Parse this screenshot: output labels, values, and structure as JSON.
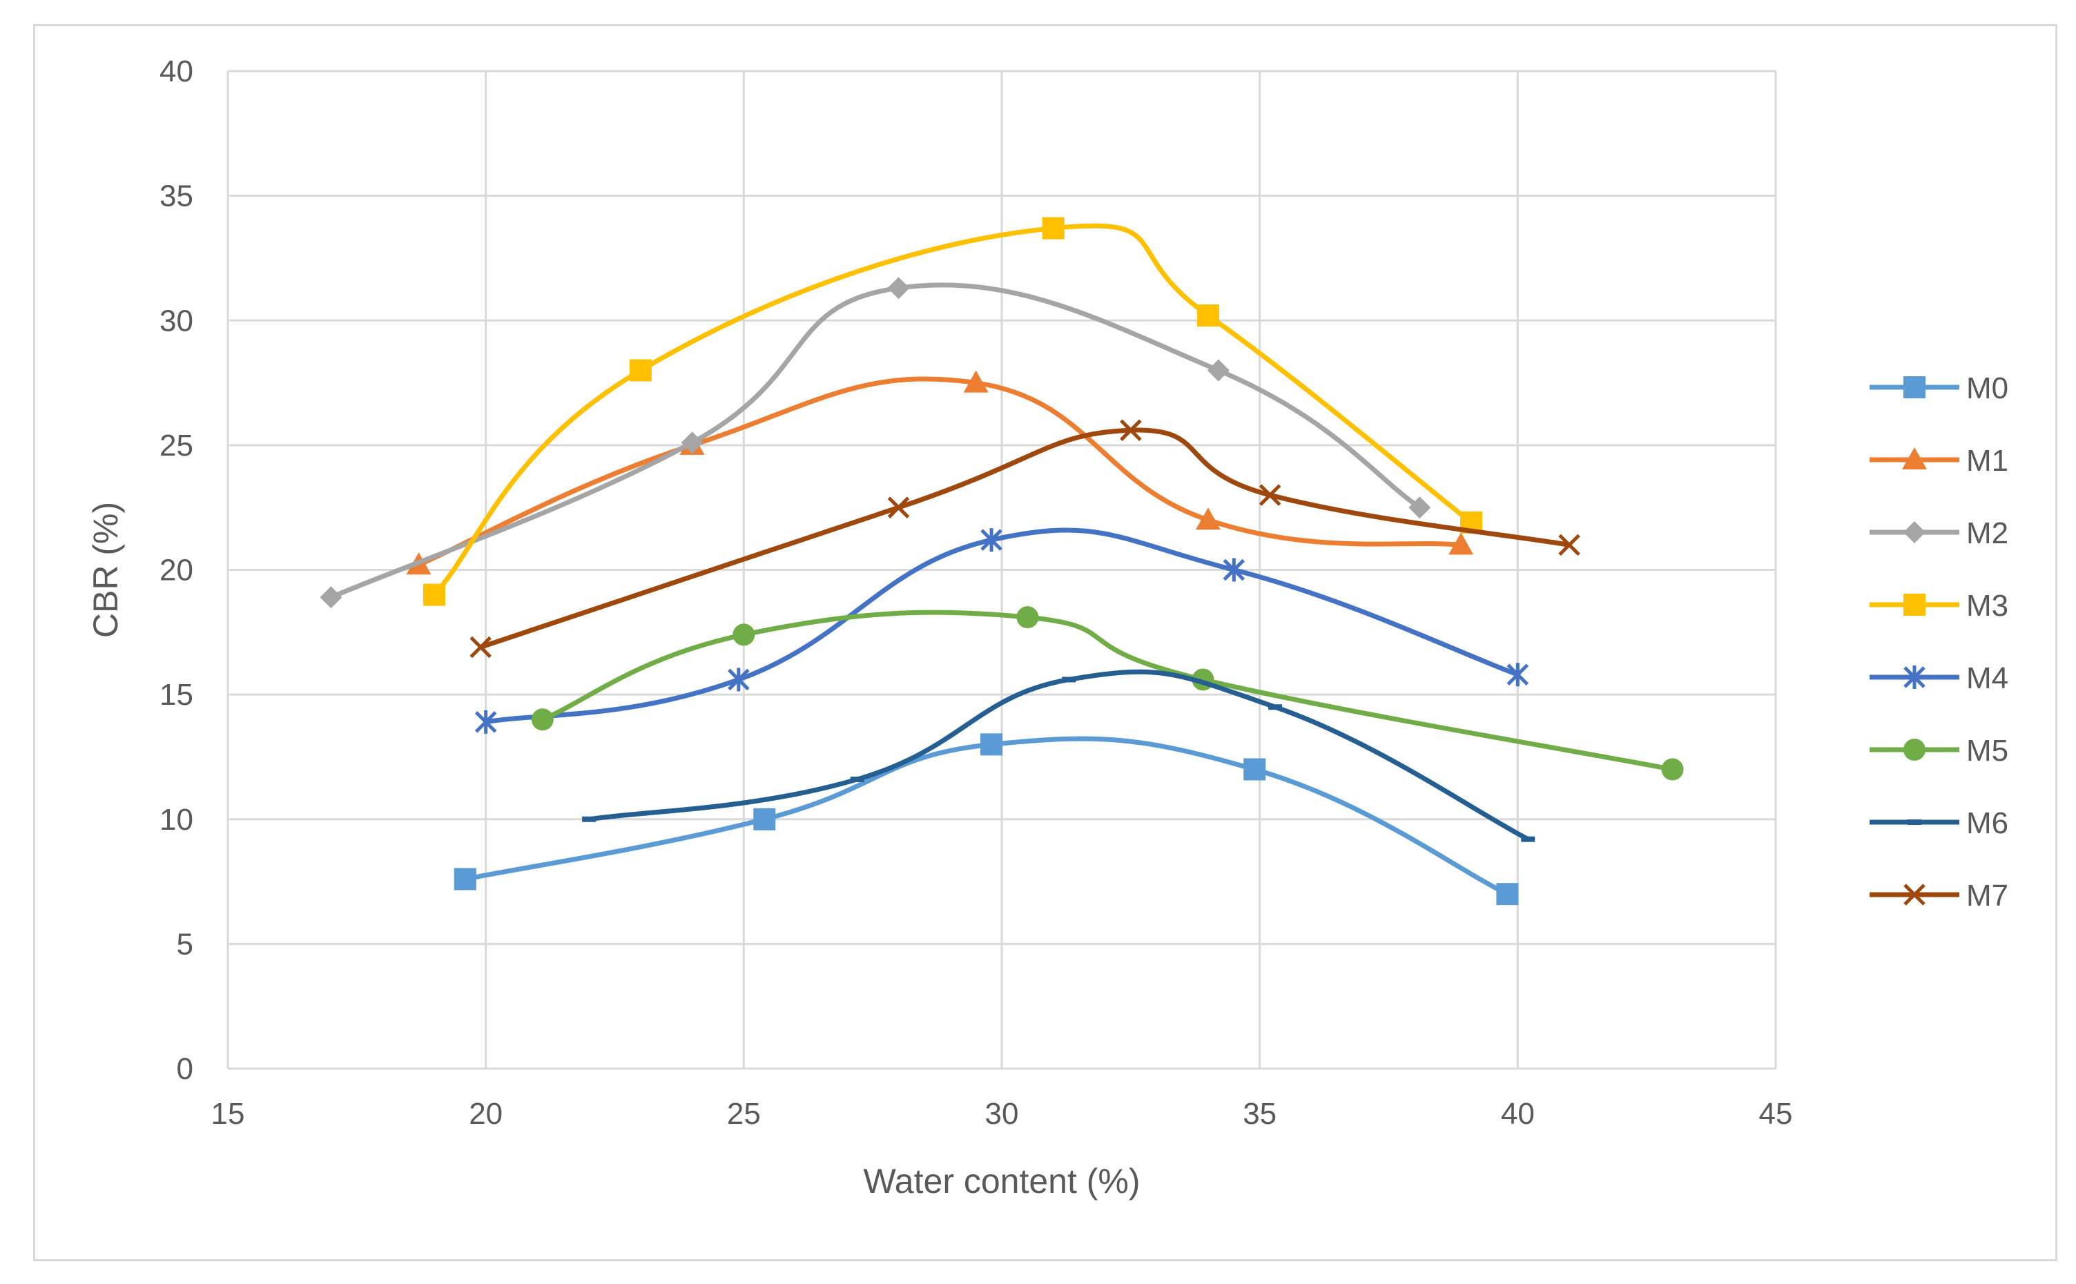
{
  "chart_data": {
    "type": "line",
    "title": "",
    "xlabel": "Water content (%)",
    "ylabel": "CBR (%)",
    "xlim": [
      15,
      45
    ],
    "ylim": [
      0,
      40
    ],
    "xticks": [
      15,
      20,
      25,
      30,
      35,
      40,
      45
    ],
    "yticks": [
      0,
      5,
      10,
      15,
      20,
      25,
      30,
      35,
      40
    ],
    "xtick_labels": [
      "15",
      "20",
      "25",
      "30",
      "35",
      "40",
      "45"
    ],
    "ytick_labels": [
      "0",
      "5",
      "10",
      "15",
      "20",
      "25",
      "30",
      "35",
      "40"
    ],
    "grid": true,
    "legend_position": "right",
    "smooth": true,
    "series": [
      {
        "name": "M0",
        "color": "#5b9bd5",
        "marker": "square",
        "x": [
          19.6,
          25.4,
          29.8,
          34.9,
          39.8
        ],
        "y": [
          7.6,
          10,
          13,
          12,
          7
        ]
      },
      {
        "name": "M1",
        "color": "#ed7d31",
        "marker": "triangle",
        "x": [
          18.7,
          24.0,
          29.5,
          34.0,
          38.9
        ],
        "y": [
          20.2,
          25,
          27.5,
          22,
          21
        ]
      },
      {
        "name": "M2",
        "color": "#a5a5a5",
        "marker": "diamond",
        "x": [
          17.0,
          24.0,
          28.0,
          34.2,
          38.1
        ],
        "y": [
          18.9,
          25.1,
          31.3,
          28,
          22.5
        ]
      },
      {
        "name": "M3",
        "color": "#ffc000",
        "marker": "square",
        "x": [
          19.0,
          23.0,
          31.0,
          34.0,
          39.1
        ],
        "y": [
          19,
          28,
          33.7,
          30.2,
          21.9
        ]
      },
      {
        "name": "M4",
        "color": "#4472c4",
        "marker": "star",
        "x": [
          20.0,
          24.9,
          29.8,
          34.5,
          40.0
        ],
        "y": [
          13.9,
          15.6,
          21.2,
          20,
          15.8
        ]
      },
      {
        "name": "M5",
        "color": "#70ad47",
        "marker": "circle",
        "x": [
          21.1,
          25.0,
          30.5,
          33.9,
          43.0
        ],
        "y": [
          14,
          17.4,
          18.1,
          15.6,
          12
        ]
      },
      {
        "name": "M6",
        "color": "#255e91",
        "marker": "dash",
        "x": [
          22.0,
          27.2,
          31.3,
          35.3,
          40.2
        ],
        "y": [
          10,
          11.6,
          15.6,
          14.5,
          9.2
        ]
      },
      {
        "name": "M7",
        "color": "#9e480e",
        "marker": "x",
        "x": [
          19.9,
          28.0,
          32.5,
          35.2,
          41.0
        ],
        "y": [
          16.9,
          22.5,
          25.6,
          23,
          21
        ]
      }
    ]
  }
}
